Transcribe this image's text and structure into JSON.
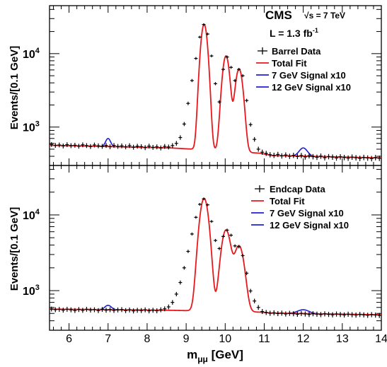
{
  "chart_data": [
    {
      "type": "scatter",
      "panel": "Barrel",
      "annotations": {
        "experiment": "CMS",
        "energy": "√s = 7 TeV",
        "lumi_label": "L = 1.3 fb",
        "lumi_exp": "-1"
      },
      "ylabel": "Events/[0.1 GeV]",
      "yscale": "log",
      "ylim": [
        300,
        45000
      ],
      "y_ticks": [
        {
          "v": 1000,
          "label": "10",
          "exp": "3"
        },
        {
          "v": 10000,
          "label": "10",
          "exp": "4"
        }
      ],
      "legend": {
        "position": "top-right",
        "entries": [
          "Barrel Data",
          "Total Fit",
          "7 GeV Signal x10",
          "12 GeV Signal x10"
        ]
      },
      "colors": {
        "data": "#000000",
        "fit": "#e8181c",
        "signal": "#1f1fd6"
      },
      "background": {
        "points": [
          [
            5.5,
            565
          ],
          [
            8.6,
            520
          ],
          [
            10.9,
            440
          ],
          [
            11.2,
            410
          ],
          [
            14.0,
            380
          ]
        ]
      },
      "peaks": [
        {
          "mass": 9.46,
          "height": 25000,
          "sigma": 0.075
        },
        {
          "mass": 10.02,
          "height": 9300,
          "sigma": 0.08
        },
        {
          "mass": 10.355,
          "height": 6200,
          "sigma": 0.085
        }
      ],
      "signals": [
        {
          "name": "7 GeV Signal x10",
          "mass": 7.0,
          "height": 700,
          "sigma": 0.06,
          "xmin": 6.8,
          "xmax": 7.2
        },
        {
          "name": "12 GeV Signal x10",
          "mass": 12.0,
          "height": 520,
          "sigma": 0.1,
          "xmin": 11.72,
          "xmax": 12.28
        }
      ],
      "data_points": [
        [
          5.55,
          580
        ],
        [
          5.65,
          563
        ],
        [
          5.75,
          571
        ],
        [
          5.85,
          553
        ],
        [
          5.95,
          576
        ],
        [
          6.05,
          558
        ],
        [
          6.15,
          566
        ],
        [
          6.25,
          549
        ],
        [
          6.35,
          573
        ],
        [
          6.45,
          560
        ],
        [
          6.55,
          544
        ],
        [
          6.65,
          570
        ],
        [
          6.75,
          556
        ],
        [
          6.85,
          547
        ],
        [
          6.95,
          562
        ],
        [
          7.05,
          540
        ],
        [
          7.15,
          562
        ],
        [
          7.25,
          546
        ],
        [
          7.35,
          555
        ],
        [
          7.45,
          538
        ],
        [
          7.55,
          559
        ],
        [
          7.65,
          532
        ],
        [
          7.75,
          549
        ],
        [
          7.85,
          541
        ],
        [
          7.95,
          525
        ],
        [
          8.05,
          551
        ],
        [
          8.15,
          530
        ],
        [
          8.25,
          538
        ],
        [
          8.35,
          520
        ],
        [
          8.45,
          545
        ],
        [
          8.55,
          536
        ],
        [
          8.65,
          560
        ],
        [
          8.75,
          600
        ],
        [
          8.85,
          720
        ],
        [
          8.95,
          1100
        ],
        [
          9.05,
          2100
        ],
        [
          9.15,
          4300
        ],
        [
          9.25,
          8600
        ],
        [
          9.35,
          16800
        ],
        [
          9.45,
          24900
        ],
        [
          9.55,
          18500
        ],
        [
          9.65,
          9300
        ],
        [
          9.75,
          3900
        ],
        [
          9.85,
          2200
        ],
        [
          9.95,
          6100
        ],
        [
          10.05,
          9000
        ],
        [
          10.15,
          6500
        ],
        [
          10.25,
          4300
        ],
        [
          10.35,
          6100
        ],
        [
          10.45,
          5000
        ],
        [
          10.55,
          2300
        ],
        [
          10.65,
          1080
        ],
        [
          10.75,
          680
        ],
        [
          10.85,
          500
        ],
        [
          10.95,
          455
        ],
        [
          11.05,
          438
        ],
        [
          11.15,
          420
        ],
        [
          11.25,
          412
        ],
        [
          11.35,
          424
        ],
        [
          11.45,
          405
        ],
        [
          11.55,
          417
        ],
        [
          11.65,
          400
        ],
        [
          11.75,
          412
        ],
        [
          11.85,
          398
        ],
        [
          11.95,
          410
        ],
        [
          12.05,
          392
        ],
        [
          12.15,
          407
        ],
        [
          12.25,
          395
        ],
        [
          12.35,
          388
        ],
        [
          12.45,
          402
        ],
        [
          12.55,
          383
        ],
        [
          12.65,
          396
        ],
        [
          12.75,
          390
        ],
        [
          12.85,
          380
        ],
        [
          12.95,
          393
        ],
        [
          13.05,
          385
        ],
        [
          13.15,
          378
        ],
        [
          13.25,
          390
        ],
        [
          13.35,
          382
        ],
        [
          13.45,
          375
        ],
        [
          13.55,
          386
        ],
        [
          13.65,
          379
        ],
        [
          13.75,
          372
        ],
        [
          13.85,
          384
        ],
        [
          13.95,
          376
        ]
      ]
    },
    {
      "type": "scatter",
      "panel": "Endcap",
      "ylabel": "Events/[0.1 GeV]",
      "xlabel": "m",
      "xlabel_sub": "μμ",
      "xlabel_unit": " [GeV]",
      "yscale": "log",
      "ylim": [
        300,
        45000
      ],
      "xlim": [
        5.5,
        14
      ],
      "x_ticks": [
        6,
        7,
        8,
        9,
        10,
        11,
        12,
        13,
        14
      ],
      "y_ticks": [
        {
          "v": 1000,
          "label": "10",
          "exp": "3"
        },
        {
          "v": 10000,
          "label": "10",
          "exp": "4"
        }
      ],
      "legend": {
        "position": "top-right",
        "entries": [
          "Endcap Data",
          "Total Fit",
          "7 GeV Signal x10",
          "12 GeV Signal x10"
        ]
      },
      "background": {
        "points": [
          [
            5.5,
            570
          ],
          [
            8.6,
            550
          ],
          [
            10.9,
            520
          ],
          [
            11.2,
            505
          ],
          [
            14.0,
            480
          ]
        ]
      },
      "peaks": [
        {
          "mass": 9.46,
          "height": 16500,
          "sigma": 0.1
        },
        {
          "mass": 10.02,
          "height": 6300,
          "sigma": 0.105
        },
        {
          "mass": 10.355,
          "height": 3900,
          "sigma": 0.11
        }
      ],
      "signals": [
        {
          "name": "7 GeV Signal x10",
          "mass": 7.0,
          "height": 640,
          "sigma": 0.08,
          "xmin": 6.75,
          "xmax": 7.25
        },
        {
          "name": "12 GeV Signal x10",
          "mass": 12.0,
          "height": 560,
          "sigma": 0.14,
          "xmin": 11.65,
          "xmax": 12.35
        }
      ],
      "data_points": [
        [
          5.55,
          572
        ],
        [
          5.65,
          560
        ],
        [
          5.75,
          566
        ],
        [
          5.85,
          553
        ],
        [
          5.95,
          568
        ],
        [
          6.05,
          558
        ],
        [
          6.15,
          547
        ],
        [
          6.25,
          563
        ],
        [
          6.35,
          550
        ],
        [
          6.45,
          568
        ],
        [
          6.55,
          554
        ],
        [
          6.65,
          560
        ],
        [
          6.75,
          545
        ],
        [
          6.85,
          565
        ],
        [
          6.95,
          552
        ],
        [
          7.05,
          560
        ],
        [
          7.15,
          548
        ],
        [
          7.25,
          556
        ],
        [
          7.35,
          562
        ],
        [
          7.45,
          545
        ],
        [
          7.55,
          556
        ],
        [
          7.65,
          540
        ],
        [
          7.75,
          551
        ],
        [
          7.85,
          546
        ],
        [
          7.95,
          558
        ],
        [
          8.05,
          541
        ],
        [
          8.15,
          551
        ],
        [
          8.25,
          542
        ],
        [
          8.35,
          559
        ],
        [
          8.45,
          575
        ],
        [
          8.55,
          610
        ],
        [
          8.65,
          700
        ],
        [
          8.75,
          900
        ],
        [
          8.85,
          1280
        ],
        [
          8.95,
          2000
        ],
        [
          9.05,
          3300
        ],
        [
          9.15,
          5600
        ],
        [
          9.25,
          9300
        ],
        [
          9.35,
          13800
        ],
        [
          9.45,
          16300
        ],
        [
          9.55,
          13600
        ],
        [
          9.65,
          8200
        ],
        [
          9.75,
          4600
        ],
        [
          9.85,
          3600
        ],
        [
          9.95,
          5200
        ],
        [
          10.05,
          6300
        ],
        [
          10.15,
          5400
        ],
        [
          10.25,
          3900
        ],
        [
          10.35,
          3800
        ],
        [
          10.45,
          2900
        ],
        [
          10.55,
          1700
        ],
        [
          10.65,
          990
        ],
        [
          10.75,
          730
        ],
        [
          10.85,
          600
        ],
        [
          10.95,
          530
        ],
        [
          11.05,
          515
        ],
        [
          11.15,
          503
        ],
        [
          11.25,
          510
        ],
        [
          11.35,
          498
        ],
        [
          11.45,
          505
        ],
        [
          11.55,
          492
        ],
        [
          11.65,
          502
        ],
        [
          11.75,
          496
        ],
        [
          11.85,
          488
        ],
        [
          11.95,
          500
        ],
        [
          12.05,
          492
        ],
        [
          12.15,
          485
        ],
        [
          12.25,
          496
        ],
        [
          12.35,
          489
        ],
        [
          12.45,
          483
        ],
        [
          12.55,
          494
        ],
        [
          12.65,
          486
        ],
        [
          12.75,
          480
        ],
        [
          12.85,
          491
        ],
        [
          12.95,
          484
        ],
        [
          13.05,
          478
        ],
        [
          13.15,
          488
        ],
        [
          13.25,
          481
        ],
        [
          13.35,
          476
        ],
        [
          13.45,
          485
        ],
        [
          13.55,
          479
        ],
        [
          13.65,
          473
        ],
        [
          13.75,
          482
        ],
        [
          13.85,
          476
        ],
        [
          13.95,
          471
        ]
      ]
    }
  ]
}
